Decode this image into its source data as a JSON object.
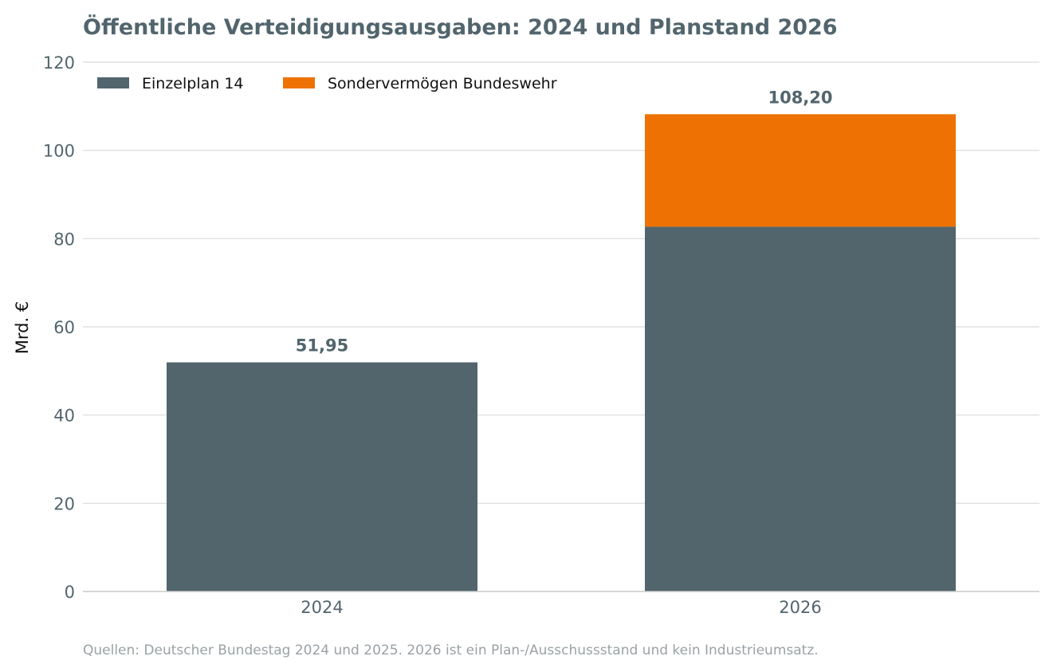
{
  "chart_data": {
    "type": "bar",
    "stacked": true,
    "title": "Öffentliche Verteidigungsausgaben: 2024 und Planstand 2026",
    "ylabel": "Mrd. €",
    "xlabel": "",
    "categories": [
      "2024",
      "2026"
    ],
    "series": [
      {
        "name": "Einzelplan 14",
        "color": "#52656d",
        "values": [
          51.95,
          82.69
        ]
      },
      {
        "name": "Sondervermögen Bundeswehr",
        "color": "#ed7203",
        "values": [
          0,
          25.51
        ]
      }
    ],
    "totals_labels": [
      "51,95",
      "108,20"
    ],
    "ylim": [
      0,
      120
    ],
    "yticks": [
      0,
      20,
      40,
      60,
      80,
      100,
      120
    ],
    "grid": true,
    "legend_position": "top-left",
    "source": "Quellen: Deutscher Bundestag 2024 und 2025. 2026 ist ein Plan-/Ausschussstand und kein Industrieumsatz."
  }
}
